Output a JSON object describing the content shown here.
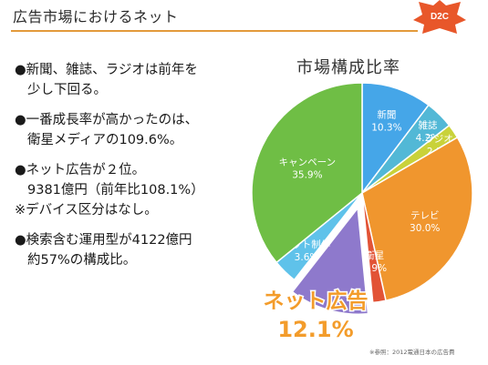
{
  "slide": {
    "title": "広告市場におけるネット",
    "logo_text": "D2C",
    "source_note": "※参照：2012電通日本の広告費"
  },
  "bullets": [
    [
      "●新聞、雑誌、ラジオは前年を",
      "少し下回る。"
    ],
    [
      "●一番成長率が高かったのは、",
      "衛星メディアの109.6%。"
    ],
    [
      "●ネット広告が２位。",
      "9381億円（前年比108.1%）",
      "※デバイス区分はなし。"
    ],
    [
      "●検索含む運用型が4122億円",
      "約57%の構成比。"
    ]
  ],
  "chart_data": {
    "type": "pie",
    "title": "市場構成比率",
    "slices": [
      {
        "label": "新聞",
        "value": 10.3,
        "value_text": "10.3%",
        "color": "#45a6e8"
      },
      {
        "label": "雑誌",
        "value": 4.2,
        "value_text": "4.2%",
        "color": "#52b8d6"
      },
      {
        "label": "ラジオ",
        "value": 2.1,
        "value_text": "2.1%",
        "color": "#c9d23a"
      },
      {
        "label": "テレビ",
        "value": 30.0,
        "value_text": "30.0%",
        "color": "#f0962e"
      },
      {
        "label": "衛星",
        "value": 1.9,
        "value_text": "1.9%",
        "color": "#e25336"
      },
      {
        "label": "ネット広告",
        "value": 12.1,
        "value_text": "12.1%",
        "color": "#8e79cc",
        "highlight": true
      },
      {
        "label": "ネット制作",
        "value": 3.6,
        "value_text": "3.6%",
        "color": "#5fc2ea"
      },
      {
        "label": "キャンペーン",
        "value": 35.9,
        "value_text": "35.9%",
        "color": "#6fbe45"
      }
    ]
  }
}
